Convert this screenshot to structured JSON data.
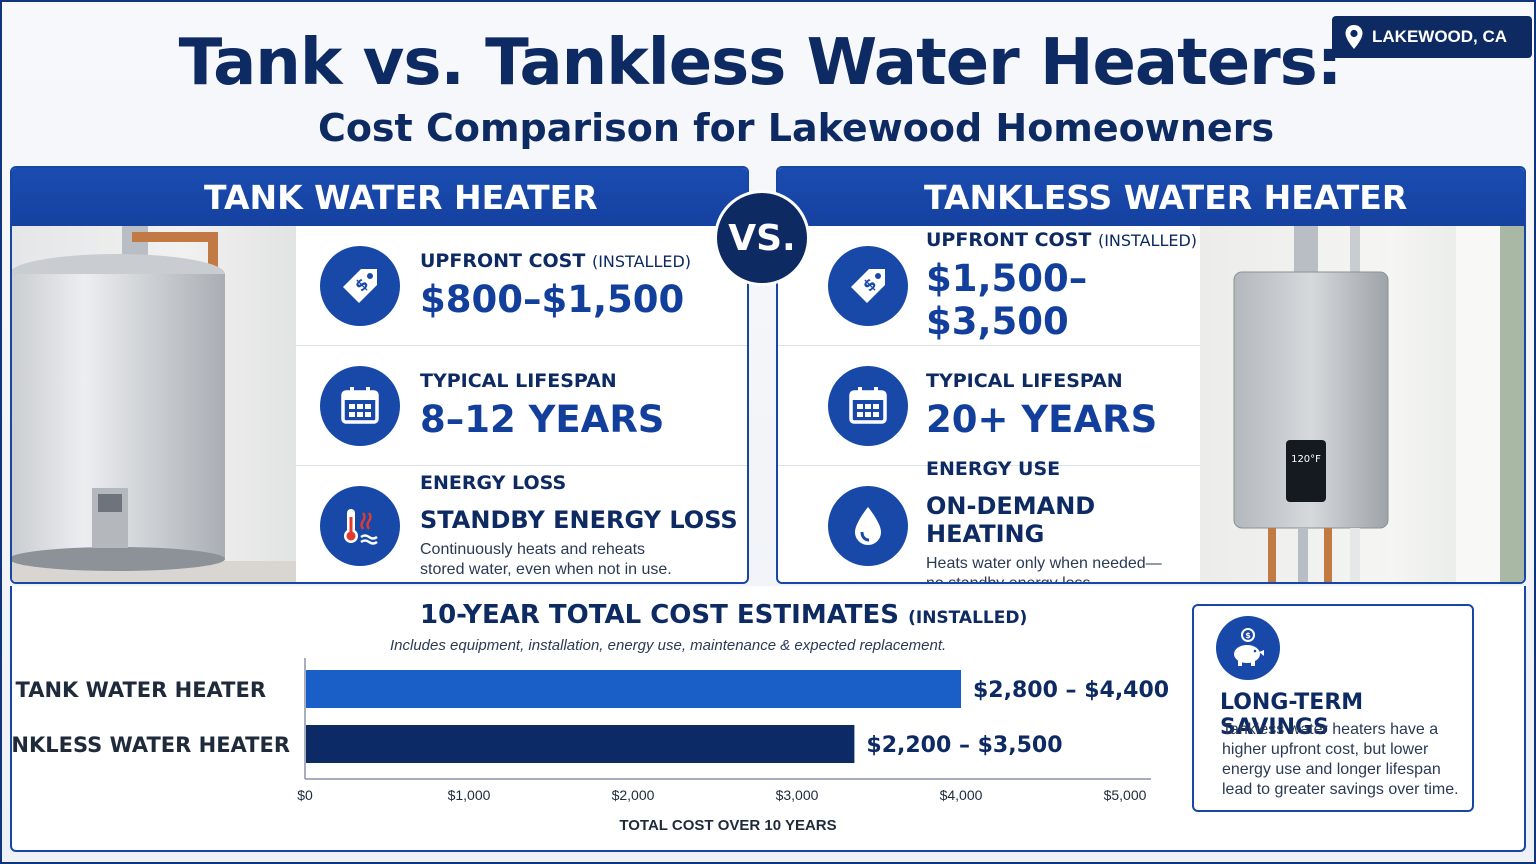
{
  "header": {
    "title": "Tank vs. Tankless Water Heaters:",
    "subtitle": "Cost Comparison for Lakewood Homeowners",
    "location": "LAKEWOOD, CA",
    "location_icon": "map-pin-icon"
  },
  "vs_label": "VS.",
  "tank": {
    "heading": "TANK WATER HEATER",
    "upfront": {
      "label": "UPFRONT COST",
      "label_note": "(INSTALLED)",
      "value": "$800–$1,500",
      "icon": "price-tag-icon"
    },
    "lifespan": {
      "label": "TYPICAL LIFESPAN",
      "value": "8–12 YEARS",
      "icon": "calendar-icon"
    },
    "energy": {
      "label": "ENERGY LOSS",
      "value": "STANDBY ENERGY LOSS",
      "desc1": "Continuously heats and reheats",
      "desc2": "stored water, even when not in use.",
      "icon": "thermometer-heat-icon"
    }
  },
  "tankless": {
    "heading": "TANKLESS WATER HEATER",
    "upfront": {
      "label": "UPFRONT COST",
      "label_note": "(INSTALLED)",
      "value": "$1,500–$3,500",
      "icon": "price-tag-icon"
    },
    "lifespan": {
      "label": "TYPICAL LIFESPAN",
      "value": "20+ YEARS",
      "icon": "calendar-icon"
    },
    "energy": {
      "label": "ENERGY USE",
      "value": "ON-DEMAND HEATING",
      "desc1": "Heats water only when needed—",
      "desc2": "no standby energy loss.",
      "icon": "water-drop-icon"
    },
    "display_reading": "120°F"
  },
  "chart": {
    "title": "10-YEAR TOTAL COST ESTIMATES",
    "title_note": "(INSTALLED)",
    "subtitle": "Includes equipment, installation, energy use, maintenance & expected replacement."
  },
  "chart_data": {
    "type": "bar",
    "orientation": "horizontal",
    "categories": [
      "TANK WATER HEATER",
      "TANKLESS WATER HEATER"
    ],
    "values": [
      4000,
      3350
    ],
    "ranges": [
      [
        2800,
        4400
      ],
      [
        2200,
        3500
      ]
    ],
    "data_labels": [
      "$2,800 – $4,400",
      "$2,200 – $3,500"
    ],
    "colors": [
      "#1a5ec8",
      "#0b2a66"
    ],
    "xlim": [
      0,
      5000
    ],
    "xticks": [
      0,
      1000,
      2000,
      3000,
      4000,
      5000
    ],
    "xtick_labels": [
      "$0",
      "$1,000",
      "$2,000",
      "$3,000",
      "$4,000",
      "$5,000"
    ],
    "xlabel": "TOTAL COST OVER 10 YEARS",
    "grid": false
  },
  "savings": {
    "icon": "piggy-bank-icon",
    "title": "LONG-TERM SAVINGS",
    "text": "Tankless water heaters have a higher upfront cost, but lower energy use and longer lifespan lead to greater savings over time."
  }
}
